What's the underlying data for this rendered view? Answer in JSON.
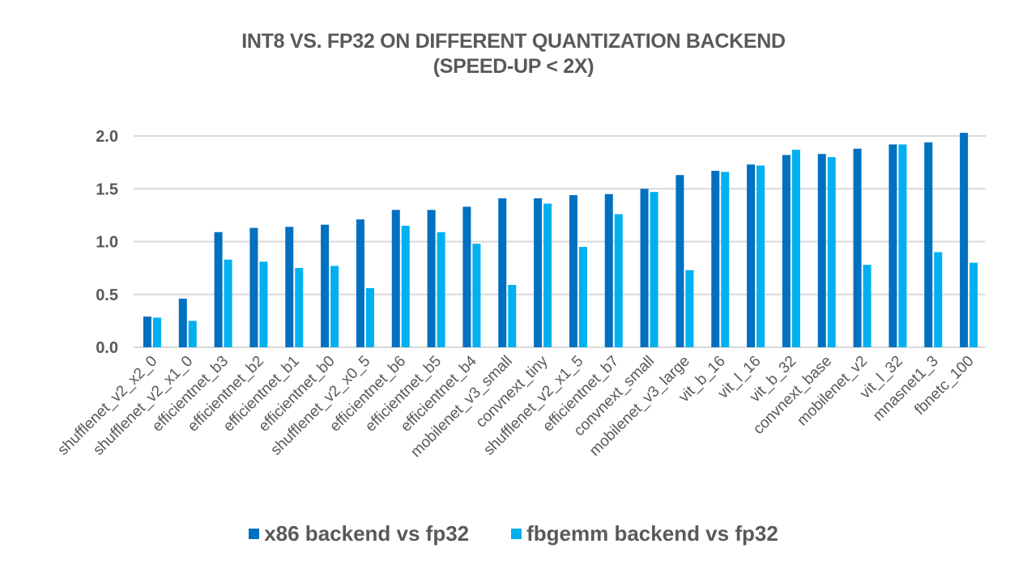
{
  "chart_data": {
    "type": "bar",
    "title": "INT8 VS. FP32 ON DIFFERENT QUANTIZATION BACKEND",
    "subtitle": "(SPEED-UP < 2X)",
    "xlabel": "",
    "ylabel": "",
    "ylim": [
      0,
      2.0
    ],
    "yticks": [
      0.0,
      0.5,
      1.0,
      1.5,
      2.0
    ],
    "ytick_labels": [
      "0.0",
      "0.5",
      "1.0",
      "1.5",
      "2.0"
    ],
    "grid": true,
    "legend_position": "bottom",
    "categories": [
      "shufflenet_v2_x2_0",
      "shufflenet_v2_x1_0",
      "efficientnet_b3",
      "efficientnet_b2",
      "efficientnet_b1",
      "efficientnet_b0",
      "shufflenet_v2_x0_5",
      "efficientnet_b6",
      "efficientnet_b5",
      "efficientnet_b4",
      "mobilenet_v3_small",
      "convnext_tiny",
      "shufflenet_v2_x1_5",
      "efficientnet_b7",
      "convnext_small",
      "mobilenet_v3_large",
      "vit_b_16",
      "vit_l_16",
      "vit_b_32",
      "convnext_base",
      "mobilenet_v2",
      "vit_l_32",
      "mnasnet1_3",
      "fbnetc_100"
    ],
    "series": [
      {
        "name": "x86 backend vs fp32",
        "color": "#0070C0",
        "values": [
          0.29,
          0.46,
          1.09,
          1.13,
          1.14,
          1.16,
          1.21,
          1.3,
          1.3,
          1.33,
          1.41,
          1.41,
          1.44,
          1.45,
          1.5,
          1.63,
          1.67,
          1.73,
          1.82,
          1.83,
          1.88,
          1.92,
          1.94,
          2.03
        ]
      },
      {
        "name": "fbgemm backend vs fp32",
        "color": "#00B0F0",
        "values": [
          0.28,
          0.25,
          0.83,
          0.81,
          0.75,
          0.77,
          0.56,
          1.15,
          1.09,
          0.98,
          0.59,
          1.36,
          0.95,
          1.26,
          1.47,
          0.73,
          1.66,
          1.72,
          1.87,
          1.8,
          0.78,
          1.92,
          0.9,
          0.8
        ]
      }
    ]
  }
}
